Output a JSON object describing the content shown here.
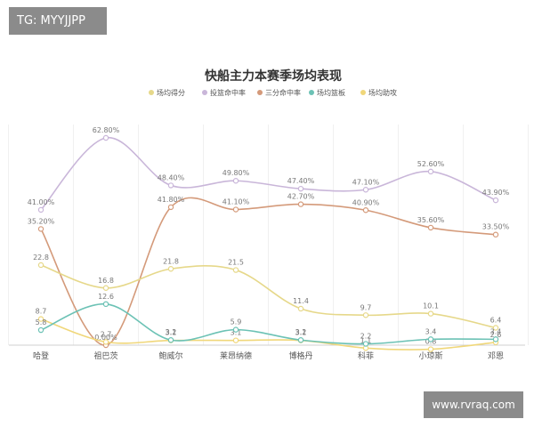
{
  "tag": "TG: MYYJJPP",
  "watermark": "www.rvraq.com",
  "chart_data": {
    "type": "line",
    "title": "快船主力本赛季场均表现",
    "categories": [
      "哈登",
      "祖巴茨",
      "鲍威尔",
      "莱昂纳德",
      "博格丹",
      "科菲",
      "小琼斯",
      "邓恩"
    ],
    "legend_position": "top",
    "grid": "vertical",
    "series": [
      {
        "name": "场均得分",
        "color": "#e6d88a",
        "values": [
          22.8,
          16.8,
          21.8,
          21.5,
          11.4,
          9.7,
          10.1,
          6.4
        ],
        "labels": [
          "22.8",
          "16.8",
          "21.8",
          "21.5",
          "11.4",
          "9.7",
          "10.1",
          "6.4"
        ]
      },
      {
        "name": "投篮命中率",
        "color": "#c9b6d9",
        "values": [
          41.0,
          62.8,
          48.4,
          49.8,
          47.4,
          47.1,
          52.6,
          43.9
        ],
        "labels": [
          "41.00%",
          "62.80%",
          "48.40%",
          "49.80%",
          "47.40%",
          "47.10%",
          "52.60%",
          "43.90%"
        ]
      },
      {
        "name": "三分命中率",
        "color": "#d49a7a",
        "values": [
          35.2,
          0.0,
          41.8,
          41.1,
          42.7,
          40.9,
          35.6,
          33.5
        ],
        "labels": [
          "35.20%",
          "0.00%",
          "41.80%",
          "41.10%",
          "42.70%",
          "40.90%",
          "35.60%",
          "33.50%"
        ]
      },
      {
        "name": "场均篮板",
        "color": "#6cc2b5",
        "values": [
          5.8,
          12.6,
          3.2,
          5.9,
          3.2,
          2.2,
          3.4,
          3.4
        ],
        "labels": [
          "5.8",
          "12.6",
          "3.2",
          "5.9",
          "3.2",
          "2.2",
          "3.4",
          "3.4"
        ]
      },
      {
        "name": "场均助攻",
        "color": "#f0d77a",
        "values": [
          8.7,
          2.7,
          3.1,
          3.1,
          3.1,
          1.1,
          0.8,
          2.6
        ],
        "labels": [
          "8.7",
          "2.7",
          "3.1",
          "3.1",
          "3.1",
          "1.1",
          "0.8",
          "2.6"
        ]
      }
    ]
  }
}
